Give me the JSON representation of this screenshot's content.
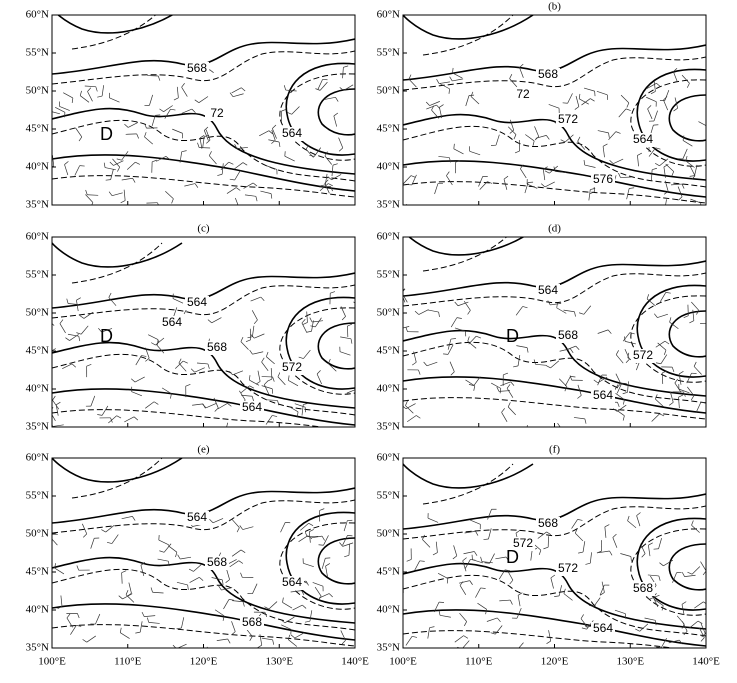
{
  "y_axis_labels": [
    "60°N",
    "55°N",
    "50°N",
    "45°N",
    "40°N",
    "35°N"
  ],
  "x_axis_labels": [
    "100°E",
    "110°E",
    "120°E",
    "130°E",
    "140°E"
  ],
  "panels": [
    {
      "low_marker": "D",
      "contour_labels": [
        "568",
        "72",
        "564"
      ]
    },
    {
      "label": "(b)",
      "contour_labels": [
        "568",
        "572",
        "564",
        "576",
        "72"
      ]
    },
    {
      "label": "(c)",
      "low_marker": "D",
      "contour_labels": [
        "564",
        "568",
        "572",
        "564",
        "564"
      ]
    },
    {
      "label": "(d)",
      "low_marker": "D",
      "contour_labels": [
        "564",
        "568",
        "572",
        "564"
      ]
    },
    {
      "label": "(e)",
      "contour_labels": [
        "564",
        "568",
        "564",
        "568"
      ]
    },
    {
      "label": "(f)",
      "low_marker": "D",
      "contour_labels": [
        "568",
        "572",
        "568",
        "564",
        "572"
      ]
    }
  ]
}
